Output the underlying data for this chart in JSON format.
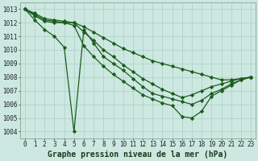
{
  "title": "Graphe pression niveau de la mer (hPa)",
  "xlabel_hours": [
    0,
    1,
    2,
    3,
    4,
    5,
    6,
    7,
    8,
    9,
    10,
    11,
    12,
    13,
    14,
    15,
    16,
    17,
    18,
    19,
    20,
    21,
    22,
    23
  ],
  "ylim": [
    1003.5,
    1013.5
  ],
  "yticks": [
    1004,
    1005,
    1006,
    1007,
    1008,
    1009,
    1010,
    1011,
    1012,
    1013
  ],
  "background_color": "#cce8e0",
  "grid_color": "#aacfc8",
  "line_color": "#1a5c1a",
  "series": [
    {
      "x": [
        0,
        1,
        2,
        3,
        4,
        5,
        6,
        7,
        8,
        9,
        10,
        11,
        12,
        13,
        14,
        15,
        16,
        17,
        18,
        19,
        20,
        21,
        22,
        23
      ],
      "y": [
        1013.0,
        1012.7,
        1012.3,
        1012.2,
        1012.1,
        1012.0,
        1011.7,
        1011.3,
        1010.9,
        1010.5,
        1010.1,
        1009.8,
        1009.5,
        1009.2,
        1009.0,
        1008.8,
        1008.6,
        1008.4,
        1008.2,
        1008.0,
        1007.8,
        1007.8,
        1007.9,
        1008.0
      ]
    },
    {
      "x": [
        0,
        1,
        2,
        3,
        4,
        5,
        6,
        7,
        8,
        9,
        10,
        11,
        12,
        13,
        14,
        15,
        16,
        17,
        18,
        19,
        20,
        21,
        22,
        23
      ],
      "y": [
        1013.0,
        1012.6,
        1012.2,
        1012.1,
        1012.0,
        1012.0,
        1011.3,
        1010.7,
        1010.0,
        1009.5,
        1008.9,
        1008.4,
        1007.9,
        1007.5,
        1007.1,
        1006.8,
        1006.5,
        1006.7,
        1007.0,
        1007.3,
        1007.5,
        1007.7,
        1007.9,
        1008.0
      ]
    },
    {
      "x": [
        0,
        1,
        2,
        3,
        4,
        5,
        6,
        7,
        8,
        9,
        10,
        11,
        12,
        13,
        14,
        15,
        16,
        17,
        18,
        19,
        20,
        21,
        22,
        23
      ],
      "y": [
        1013.0,
        1012.2,
        1011.5,
        1011.0,
        1010.2,
        1004.0,
        1011.5,
        1010.5,
        1009.5,
        1009.0,
        1008.5,
        1007.9,
        1007.3,
        1006.8,
        1006.6,
        1006.4,
        1006.2,
        1006.0,
        1006.3,
        1006.8,
        1007.1,
        1007.5,
        1007.8,
        1008.0
      ]
    },
    {
      "x": [
        0,
        1,
        2,
        3,
        4,
        5,
        6,
        7,
        8,
        9,
        10,
        11,
        12,
        13,
        14,
        15,
        16,
        17,
        18,
        19,
        20,
        21,
        22,
        23
      ],
      "y": [
        1013.0,
        1012.5,
        1012.1,
        1012.0,
        1012.0,
        1011.8,
        1010.3,
        1009.5,
        1008.8,
        1008.2,
        1007.7,
        1007.2,
        1006.7,
        1006.4,
        1006.1,
        1005.9,
        1005.1,
        1005.0,
        1005.5,
        1006.6,
        1007.0,
        1007.4,
        1007.8,
        1008.0
      ]
    }
  ],
  "marker": "D",
  "marker_size": 2.2,
  "line_width": 0.9,
  "font_size_label": 7,
  "font_size_tick": 5.5
}
